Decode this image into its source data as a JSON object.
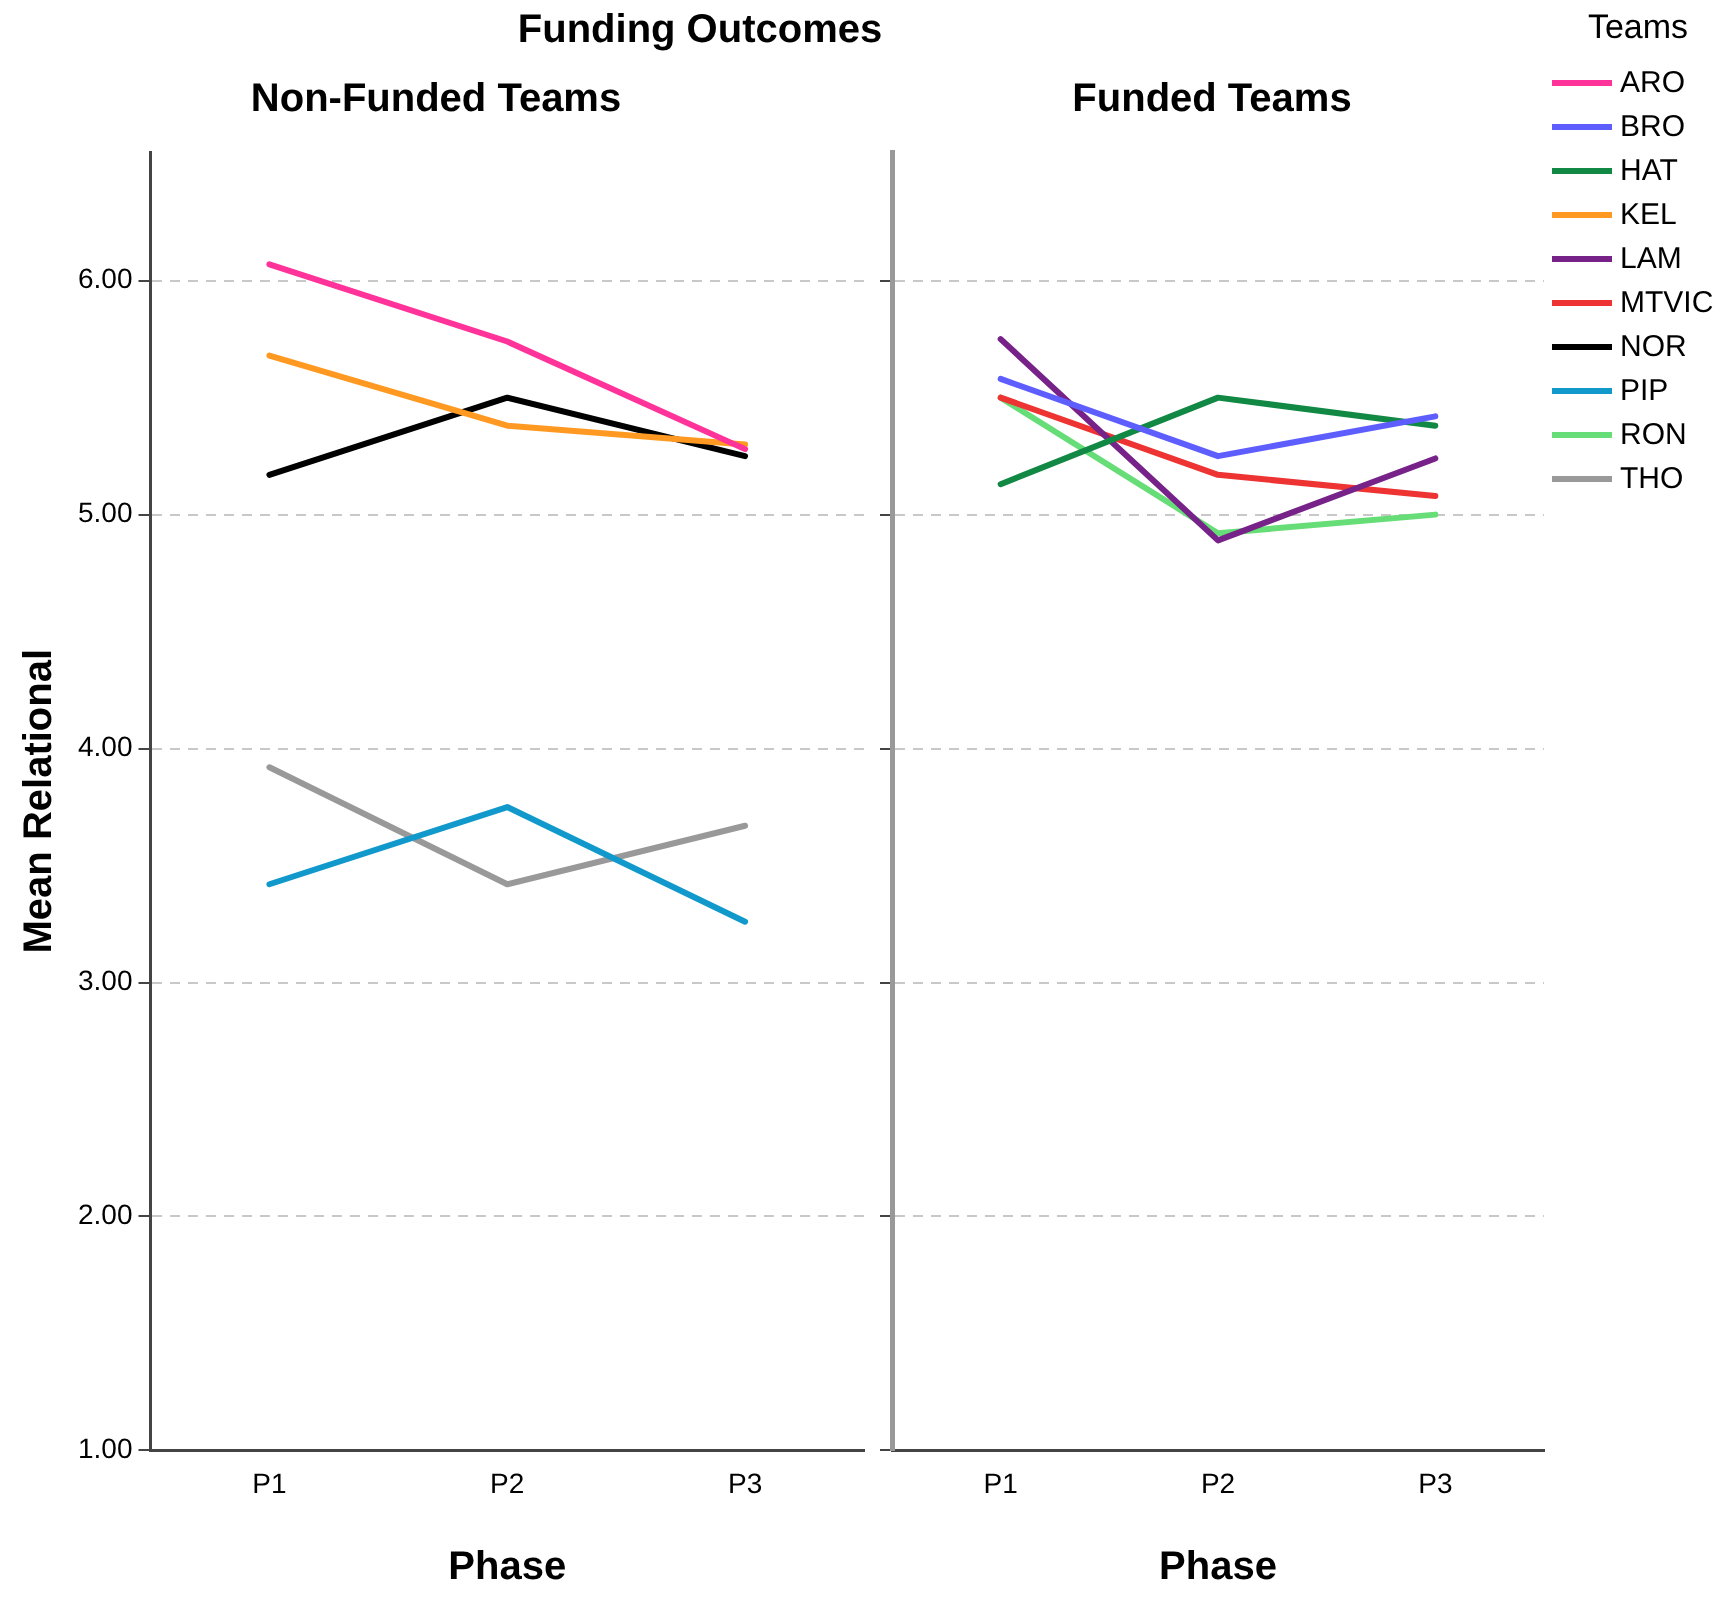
{
  "chart_data": [
    {
      "type": "line",
      "title": "Non-Funded Teams",
      "annotations": [
        "Funding Outcomes"
      ],
      "xlabel": "Phase",
      "ylabel": "Mean Relational",
      "categories": [
        "P1",
        "P2",
        "P3"
      ],
      "ylim": [
        1,
        6.55
      ],
      "yticks": [
        {
          "value": 1,
          "label": "1.00"
        },
        {
          "value": 2,
          "label": "2.00"
        },
        {
          "value": 3,
          "label": "3.00"
        },
        {
          "value": 4,
          "label": "4.00"
        },
        {
          "value": 5,
          "label": "5.00"
        },
        {
          "value": 6,
          "label": "6.00"
        }
      ],
      "grid": "y",
      "legend": "top right",
      "marker": "none",
      "line_style": "solid",
      "series": [
        {
          "name": "ARO",
          "color": "#ff3399",
          "values": [
            6.07,
            5.74,
            5.28
          ]
        },
        {
          "name": "KEL",
          "color": "#ff9922",
          "values": [
            5.68,
            5.38,
            5.3
          ]
        },
        {
          "name": "NOR",
          "color": "#000000",
          "values": [
            5.17,
            5.5,
            5.25
          ]
        },
        {
          "name": "PIP",
          "color": "#1199cc",
          "values": [
            3.42,
            3.75,
            3.26
          ]
        },
        {
          "name": "THO",
          "color": "#999999",
          "values": [
            3.92,
            3.42,
            3.67
          ]
        }
      ]
    },
    {
      "type": "line",
      "title": "Funded Teams",
      "xlabel": "Phase",
      "categories": [
        "P1",
        "P2",
        "P3"
      ],
      "legend_title": "Teams",
      "ylim": [
        1,
        6.55
      ],
      "yticks": [
        1,
        2,
        3,
        4,
        5,
        6
      ],
      "tick_labels": "x",
      "grid": "y",
      "legend": "top right",
      "marker": "none",
      "line_style": "solid",
      "series": [
        {
          "name": "BRO",
          "color": "#5e5eff",
          "values": [
            5.58,
            5.25,
            5.42
          ]
        },
        {
          "name": "HAT",
          "color": "#118844",
          "values": [
            5.13,
            5.5,
            5.38
          ]
        },
        {
          "name": "LAM",
          "color": "#772288",
          "values": [
            5.75,
            4.89,
            5.24
          ]
        },
        {
          "name": "MTVIC",
          "color": "#ee3333",
          "values": [
            5.5,
            5.17,
            5.08
          ]
        },
        {
          "name": "RON",
          "color": "#66dd77",
          "values": [
            5.5,
            4.92,
            5.0
          ]
        }
      ]
    }
  ]
}
